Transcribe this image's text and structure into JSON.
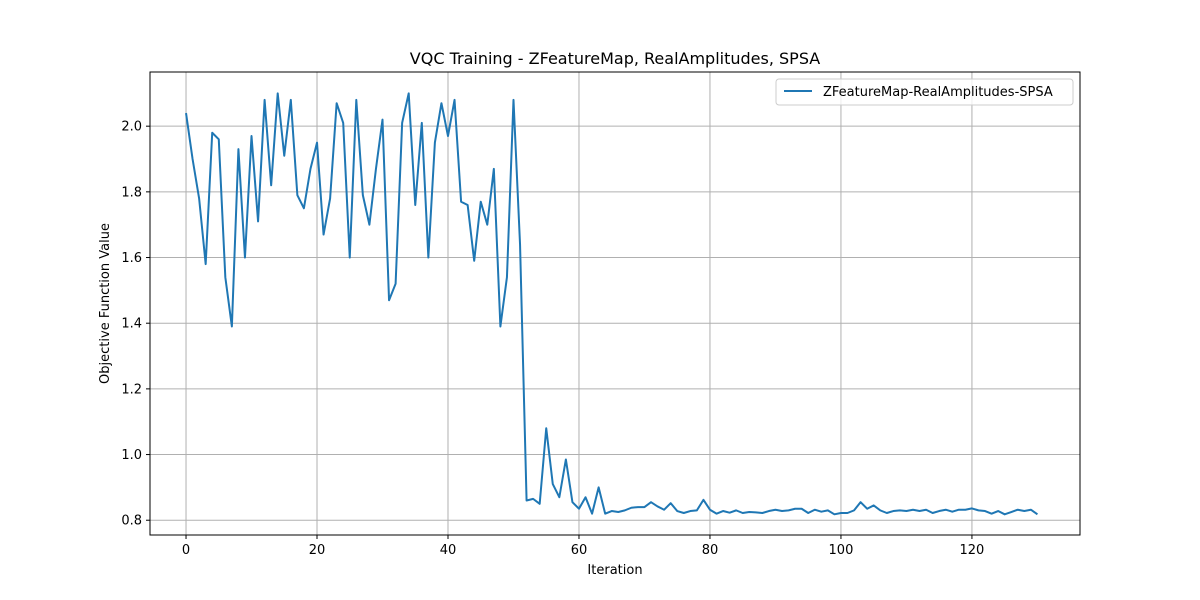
{
  "chart_data": {
    "type": "line",
    "title": "VQC Training - ZFeatureMap, RealAmplitudes, SPSA",
    "xlabel": "Iteration",
    "ylabel": "Objective Function Value",
    "xlim": [
      -5.5,
      136.5
    ],
    "ylim": [
      0.755,
      2.165
    ],
    "xticks": [
      0,
      20,
      40,
      60,
      80,
      100,
      120
    ],
    "yticks": [
      0.8,
      1.0,
      1.2,
      1.4,
      1.6,
      1.8,
      2.0
    ],
    "xtick_labels": [
      "0",
      "20",
      "40",
      "60",
      "80",
      "100",
      "120"
    ],
    "ytick_labels": [
      "0.8",
      "1.0",
      "1.2",
      "1.4",
      "1.6",
      "1.8",
      "2.0"
    ],
    "grid": true,
    "legend": {
      "position": "top-right"
    },
    "series": [
      {
        "name": "ZFeatureMap-RealAmplitudes-SPSA",
        "color": "#1f77b4",
        "values": [
          2.04,
          1.9,
          1.78,
          1.58,
          1.98,
          1.96,
          1.54,
          1.39,
          1.93,
          1.6,
          1.97,
          1.71,
          2.08,
          1.82,
          2.1,
          1.91,
          2.08,
          1.79,
          1.75,
          1.87,
          1.95,
          1.67,
          1.78,
          2.07,
          2.01,
          1.6,
          2.08,
          1.79,
          1.7,
          1.87,
          2.02,
          1.47,
          1.52,
          2.01,
          2.1,
          1.76,
          2.01,
          1.6,
          1.95,
          2.07,
          1.97,
          2.08,
          1.77,
          1.76,
          1.59,
          1.77,
          1.7,
          1.87,
          1.39,
          1.54,
          2.08,
          1.64,
          0.86,
          0.865,
          0.85,
          1.08,
          0.91,
          0.87,
          0.985,
          0.855,
          0.835,
          0.87,
          0.82,
          0.9,
          0.82,
          0.828,
          0.825,
          0.83,
          0.838,
          0.84,
          0.84,
          0.855,
          0.842,
          0.832,
          0.852,
          0.828,
          0.822,
          0.828,
          0.83,
          0.862,
          0.832,
          0.82,
          0.828,
          0.823,
          0.83,
          0.822,
          0.825,
          0.824,
          0.822,
          0.828,
          0.832,
          0.828,
          0.83,
          0.835,
          0.835,
          0.822,
          0.832,
          0.826,
          0.83,
          0.818,
          0.822,
          0.822,
          0.83,
          0.855,
          0.835,
          0.845,
          0.83,
          0.822,
          0.828,
          0.83,
          0.828,
          0.832,
          0.828,
          0.832,
          0.822,
          0.828,
          0.832,
          0.826,
          0.832,
          0.832,
          0.836,
          0.83,
          0.828,
          0.82,
          0.828,
          0.818,
          0.825,
          0.832,
          0.828,
          0.832,
          0.818
        ]
      }
    ]
  }
}
